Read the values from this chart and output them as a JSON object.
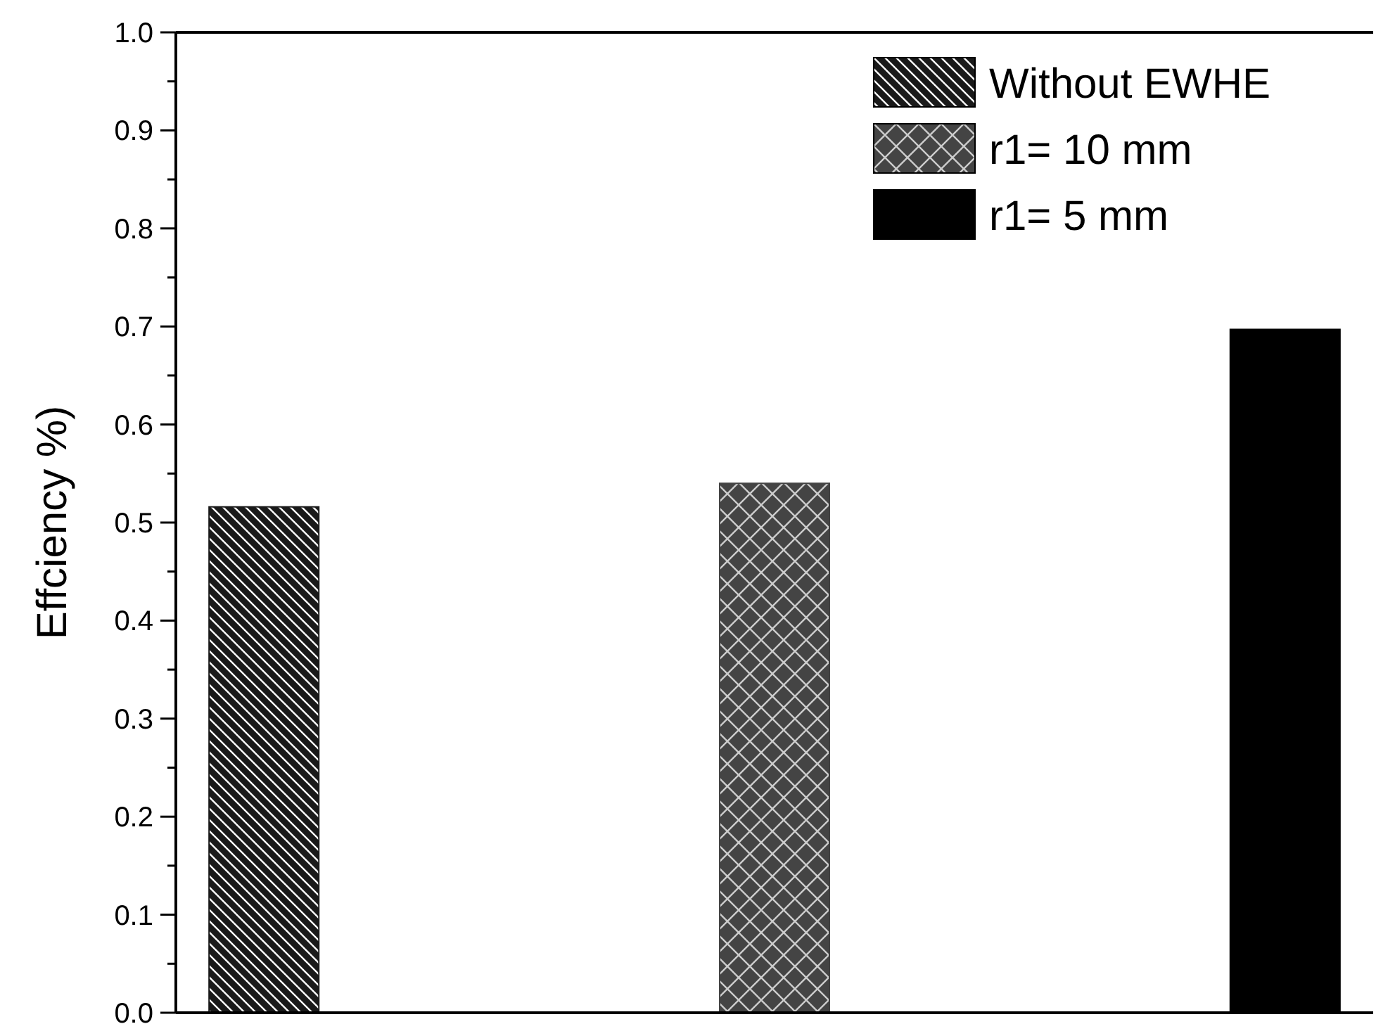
{
  "chart_data": {
    "type": "bar",
    "ylabel": "Effciency %)",
    "categories": [
      null,
      null,
      null
    ],
    "series": [
      {
        "name": "Without EWHE",
        "color": "#1a1a1a",
        "values": [
          0.516,
          null,
          null
        ]
      },
      {
        "name": "r1= 10 mm",
        "color": "#444444",
        "values": [
          null,
          0.54,
          null
        ]
      },
      {
        "name": "r1= 5 mm",
        "color": "#000000",
        "values": [
          null,
          null,
          0.697
        ]
      }
    ],
    "ylim": [
      0,
      1
    ],
    "yticks": [
      {
        "value": 0,
        "label": "0.0"
      },
      {
        "value": 0.05,
        "label": null
      },
      {
        "value": 0.1,
        "label": "0.1"
      },
      {
        "value": 0.15,
        "label": null
      },
      {
        "value": 0.2,
        "label": "0.2"
      },
      {
        "value": 0.25,
        "label": null
      },
      {
        "value": 0.3,
        "label": "0.3"
      },
      {
        "value": 0.35,
        "label": null
      },
      {
        "value": 0.4,
        "label": "0.4"
      },
      {
        "value": 0.45,
        "label": null
      },
      {
        "value": 0.5,
        "label": "0.5"
      },
      {
        "value": 0.55,
        "label": null
      },
      {
        "value": 0.6,
        "label": "0.6"
      },
      {
        "value": 0.65,
        "label": null
      },
      {
        "value": 0.7,
        "label": "0.7"
      },
      {
        "value": 0.75,
        "label": null
      },
      {
        "value": 0.8,
        "label": "0.8"
      },
      {
        "value": 0.85,
        "label": null
      },
      {
        "value": 0.9,
        "label": "0.9"
      },
      {
        "value": 0.95,
        "label": null
      },
      {
        "value": 1,
        "label": "1.0"
      }
    ],
    "grid": false,
    "legend": "top right",
    "tick_labels": "y"
  }
}
